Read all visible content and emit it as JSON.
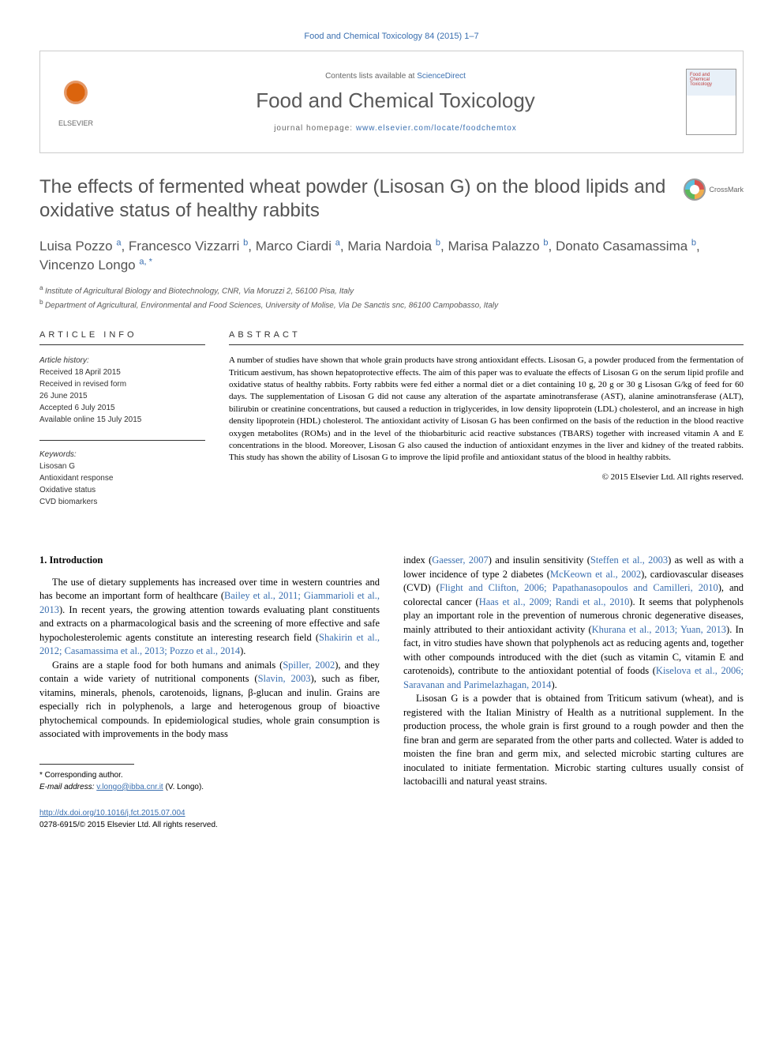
{
  "top_citation": "Food and Chemical Toxicology 84 (2015) 1–7",
  "header": {
    "publisher_name": "ELSEVIER",
    "contents_prefix": "Contents lists available at ",
    "contents_link": "ScienceDirect",
    "journal_name": "Food and Chemical Toxicology",
    "homepage_prefix": "journal homepage: ",
    "homepage_url": "www.elsevier.com/locate/foodchemtox",
    "cover_title": "Food and Chemical Toxicology"
  },
  "crossmark_label": "CrossMark",
  "article_title": "The effects of fermented wheat powder (Lisosan G) on the blood lipids and oxidative status of healthy rabbits",
  "authors_html_parts": [
    {
      "name": "Luisa Pozzo",
      "aff": "a"
    },
    {
      "name": "Francesco Vizzarri",
      "aff": "b"
    },
    {
      "name": "Marco Ciardi",
      "aff": "a"
    },
    {
      "name": "Maria Nardoia",
      "aff": "b"
    },
    {
      "name": "Marisa Palazzo",
      "aff": "b"
    },
    {
      "name": "Donato Casamassima",
      "aff": "b"
    },
    {
      "name": "Vincenzo Longo",
      "aff": "a, *"
    }
  ],
  "affiliations": [
    {
      "key": "a",
      "text": "Institute of Agricultural Biology and Biotechnology, CNR, Via Moruzzi 2, 56100 Pisa, Italy"
    },
    {
      "key": "b",
      "text": "Department of Agricultural, Environmental and Food Sciences, University of Molise, Via De Sanctis snc, 86100 Campobasso, Italy"
    }
  ],
  "info_heading": "ARTICLE INFO",
  "abstract_heading": "ABSTRACT",
  "history": {
    "label": "Article history:",
    "received": "Received 18 April 2015",
    "revised1": "Received in revised form",
    "revised2": "26 June 2015",
    "accepted": "Accepted 6 July 2015",
    "online": "Available online 15 July 2015"
  },
  "keywords": {
    "label": "Keywords:",
    "items": [
      "Lisosan G",
      "Antioxidant response",
      "Oxidative status",
      "CVD biomarkers"
    ]
  },
  "abstract_text": "A number of studies have shown that whole grain products have strong antioxidant effects. Lisosan G, a powder produced from the fermentation of Triticum aestivum, has shown hepatoprotective effects. The aim of this paper was to evaluate the effects of Lisosan G on the serum lipid profile and oxidative status of healthy rabbits. Forty rabbits were fed either a normal diet or a diet containing 10 g, 20 g or 30 g Lisosan G/kg of feed for 60 days. The supplementation of Lisosan G did not cause any alteration of the aspartate aminotransferase (AST), alanine aminotransferase (ALT), bilirubin or creatinine concentrations, but caused a reduction in triglycerides, in low density lipoprotein (LDL) cholesterol, and an increase in high density lipoprotein (HDL) cholesterol. The antioxidant activity of Lisosan G has been confirmed on the basis of the reduction in the blood reactive oxygen metabolites (ROMs) and in the level of the thiobarbituric acid reactive substances (TBARS) together with increased vitamin A and E concentrations in the blood. Moreover, Lisosan G also caused the induction of antioxidant enzymes in the liver and kidney of the treated rabbits. This study has shown the ability of Lisosan G to improve the lipid profile and antioxidant status of the blood in healthy rabbits.",
  "copyright": "© 2015 Elsevier Ltd. All rights reserved.",
  "section_heading": "1. Introduction",
  "body": {
    "col1_p1_a": "The use of dietary supplements has increased over time in western countries and has become an important form of healthcare (",
    "col1_p1_ref1": "Bailey et al., 2011; Giammarioli et al., 2013",
    "col1_p1_b": "). In recent years, the growing attention towards evaluating plant constituents and extracts on a pharmacological basis and the screening of more effective and safe hypocholesterolemic agents constitute an interesting research field (",
    "col1_p1_ref2": "Shakirin et al., 2012; Casamassima et al., 2013; Pozzo et al., 2014",
    "col1_p1_c": ").",
    "col1_p2_a": "Grains are a staple food for both humans and animals (",
    "col1_p2_ref1": "Spiller, 2002",
    "col1_p2_b": "), and they contain a wide variety of nutritional components (",
    "col1_p2_ref2": "Slavin, 2003",
    "col1_p2_c": "), such as fiber, vitamins, minerals, phenols, carotenoids, lignans, β-glucan and inulin. Grains are especially rich in polyphenols, a large and heterogenous group of bioactive phytochemical compounds. In epidemiological studies, whole grain consumption is associated with improvements in the body mass",
    "col2_p1_a": "index (",
    "col2_p1_ref1": "Gaesser, 2007",
    "col2_p1_b": ") and insulin sensitivity (",
    "col2_p1_ref2": "Steffen et al., 2003",
    "col2_p1_c": ") as well as with a lower incidence of type 2 diabetes (",
    "col2_p1_ref3": "McKeown et al., 2002",
    "col2_p1_d": "), cardiovascular diseases (CVD) (",
    "col2_p1_ref4": "Flight and Clifton, 2006; Papathanasopoulos and Camilleri, 2010",
    "col2_p1_e": "), and colorectal cancer (",
    "col2_p1_ref5": "Haas et al., 2009; Randi et al., 2010",
    "col2_p1_f": "). It seems that polyphenols play an important role in the prevention of numerous chronic degenerative diseases, mainly attributed to their antioxidant activity (",
    "col2_p1_ref6": "Khurana et al., 2013; Yuan, 2013",
    "col2_p1_g": "). In fact, in vitro studies have shown that polyphenols act as reducing agents and, together with other compounds introduced with the diet (such as vitamin C, vitamin E and carotenoids), contribute to the antioxidant potential of foods (",
    "col2_p1_ref7": "Kiselova et al., 2006; Saravanan and Parimelazhagan, 2014",
    "col2_p1_h": ").",
    "col2_p2": "Lisosan G is a powder that is obtained from Triticum sativum (wheat), and is registered with the Italian Ministry of Health as a nutritional supplement. In the production process, the whole grain is first ground to a rough powder and then the fine bran and germ are separated from the other parts and collected. Water is added to moisten the fine bran and germ mix, and selected microbic starting cultures are inoculated to initiate fermentation. Microbic starting cultures usually consist of lactobacilli and natural yeast strains."
  },
  "corresponding": {
    "label": "* Corresponding author.",
    "email_label": "E-mail address: ",
    "email": "v.longo@ibba.cnr.it",
    "email_suffix": " (V. Longo)."
  },
  "footer": {
    "doi": "http://dx.doi.org/10.1016/j.fct.2015.07.004",
    "issn_line": "0278-6915/© 2015 Elsevier Ltd. All rights reserved."
  },
  "colors": {
    "link": "#3a6fb0",
    "heading_gray": "#545454",
    "text": "#000000",
    "border": "#cccccc"
  }
}
